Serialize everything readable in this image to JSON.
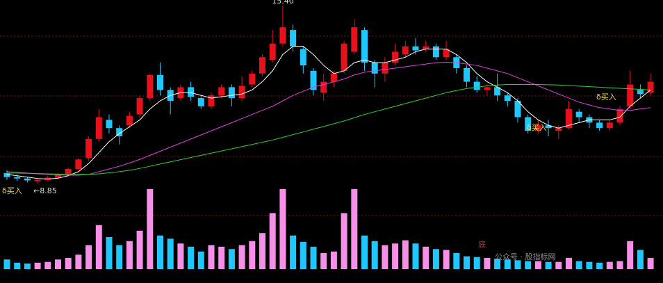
{
  "chart_data": {
    "type": "candlestick",
    "open": [
      9.25,
      9.1,
      9.05,
      8.95,
      9.0,
      9.08,
      9.2,
      9.4,
      9.8,
      10.5,
      11.2,
      10.9,
      11.0,
      11.4,
      12.0,
      12.85,
      12.3,
      12.0,
      12.4,
      12.0,
      11.7,
      12.1,
      12.4,
      12.0,
      12.5,
      12.9,
      13.4,
      14.0,
      14.5,
      13.8,
      13.0,
      12.2,
      12.6,
      13.0,
      13.7,
      14.5,
      13.3,
      12.9,
      13.3,
      13.6,
      13.9,
      13.8,
      13.9,
      13.5,
      13.5,
      13.1,
      12.6,
      12.3,
      12.4,
      12.1,
      11.9,
      11.3,
      10.8,
      11.0,
      10.8,
      10.9,
      11.5,
      11.3,
      11.1,
      10.9,
      11.1,
      11.7,
      12.3,
      12.2
    ],
    "close": [
      9.1,
      9.05,
      8.98,
      9.0,
      9.08,
      9.2,
      9.4,
      9.75,
      10.5,
      11.3,
      10.9,
      10.6,
      11.35,
      12.0,
      12.85,
      12.3,
      11.9,
      12.4,
      12.05,
      11.7,
      12.1,
      12.4,
      12.0,
      12.45,
      12.9,
      13.5,
      14.0,
      14.6,
      13.9,
      13.2,
      12.3,
      12.6,
      12.9,
      14.0,
      14.6,
      13.3,
      12.9,
      13.3,
      13.7,
      13.9,
      13.75,
      13.9,
      13.5,
      13.8,
      13.1,
      12.6,
      12.3,
      12.4,
      12.1,
      11.9,
      11.3,
      10.8,
      11.0,
      10.9,
      10.9,
      11.6,
      11.3,
      11.1,
      10.9,
      11.1,
      11.6,
      12.5,
      12.15,
      12.6
    ],
    "high": [
      9.35,
      9.2,
      9.1,
      9.05,
      9.15,
      9.25,
      9.45,
      9.8,
      10.6,
      11.6,
      11.4,
      11.0,
      11.5,
      12.1,
      12.9,
      13.3,
      12.4,
      12.5,
      12.6,
      12.1,
      12.2,
      12.5,
      12.5,
      12.8,
      13.0,
      13.6,
      14.5,
      15.4,
      14.7,
      13.9,
      13.1,
      12.9,
      13.0,
      14.1,
      14.9,
      14.6,
      13.4,
      13.5,
      14.0,
      14.1,
      14.2,
      14.1,
      14.0,
      14.1,
      13.6,
      13.2,
      12.8,
      12.5,
      12.9,
      12.2,
      12.0,
      11.4,
      11.2,
      11.2,
      11.0,
      11.9,
      11.6,
      11.4,
      11.2,
      11.2,
      11.7,
      13.0,
      12.5,
      12.9
    ],
    "low": [
      9.0,
      8.95,
      8.9,
      8.85,
      8.95,
      9.02,
      9.15,
      9.35,
      9.7,
      10.4,
      10.7,
      10.3,
      10.9,
      11.3,
      11.9,
      12.1,
      11.4,
      11.9,
      11.9,
      11.6,
      11.6,
      12.0,
      11.7,
      11.9,
      12.4,
      12.8,
      13.3,
      13.9,
      13.7,
      12.9,
      12.1,
      11.9,
      12.4,
      12.9,
      13.6,
      13.0,
      12.4,
      12.6,
      13.2,
      13.5,
      13.6,
      13.7,
      13.4,
      13.4,
      12.9,
      12.4,
      12.2,
      12.1,
      11.9,
      11.7,
      11.1,
      10.7,
      10.7,
      10.6,
      10.5,
      10.85,
      11.1,
      10.9,
      10.8,
      10.8,
      11.0,
      11.6,
      12.0,
      12.1
    ],
    "up_color": "#e8101b",
    "down_color": "#1ec8ff",
    "ylim": [
      8.2,
      15.6
    ],
    "ma": [
      {
        "color": "#ffffff",
        "values": [
          9.2,
          9.15,
          9.1,
          9.05,
          9.03,
          9.06,
          9.15,
          9.3,
          9.6,
          10.0,
          10.4,
          10.7,
          10.95,
          11.2,
          11.6,
          11.9,
          12.1,
          12.2,
          12.2,
          12.1,
          12.0,
          12.05,
          12.1,
          12.15,
          12.3,
          12.6,
          13.0,
          13.6,
          13.9,
          13.9,
          13.6,
          13.2,
          12.9,
          13.0,
          13.3,
          13.4,
          13.3,
          13.3,
          13.4,
          13.5,
          13.7,
          13.8,
          13.8,
          13.8,
          13.6,
          13.3,
          12.9,
          12.6,
          12.4,
          12.2,
          11.9,
          11.5,
          11.2,
          11.0,
          10.9,
          11.0,
          11.1,
          11.2,
          11.2,
          11.2,
          11.3,
          11.7,
          12.0,
          12.3
        ]
      },
      {
        "color": "#e040e0",
        "values": [
          9.3,
          9.28,
          9.25,
          9.22,
          9.2,
          9.18,
          9.17,
          9.17,
          9.2,
          9.3,
          9.4,
          9.5,
          9.62,
          9.75,
          9.9,
          10.05,
          10.2,
          10.35,
          10.5,
          10.65,
          10.8,
          10.95,
          11.1,
          11.25,
          11.4,
          11.55,
          11.7,
          11.9,
          12.1,
          12.25,
          12.4,
          12.5,
          12.6,
          12.7,
          12.85,
          12.95,
          13.0,
          13.05,
          13.1,
          13.15,
          13.2,
          13.25,
          13.3,
          13.32,
          13.3,
          13.25,
          13.2,
          13.1,
          13.0,
          12.9,
          12.75,
          12.6,
          12.45,
          12.3,
          12.15,
          12.0,
          11.85,
          11.75,
          11.65,
          11.6,
          11.55,
          11.55,
          11.6,
          11.65
        ]
      },
      {
        "color": "#30d030",
        "values": [
          9.25,
          9.25,
          9.24,
          9.23,
          9.22,
          9.21,
          9.2,
          9.2,
          9.2,
          9.22,
          9.26,
          9.3,
          9.35,
          9.42,
          9.5,
          9.58,
          9.66,
          9.74,
          9.82,
          9.9,
          9.98,
          10.06,
          10.14,
          10.22,
          10.3,
          10.38,
          10.46,
          10.56,
          10.66,
          10.76,
          10.86,
          10.96,
          11.06,
          11.16,
          11.28,
          11.4,
          11.5,
          11.6,
          11.7,
          11.8,
          11.9,
          12.0,
          12.1,
          12.2,
          12.28,
          12.35,
          12.4,
          12.45,
          12.48,
          12.5,
          12.5,
          12.5,
          12.5,
          12.49,
          12.48,
          12.46,
          12.44,
          12.42,
          12.4,
          12.38,
          12.36,
          12.34,
          12.32,
          12.3
        ]
      }
    ],
    "volume": {
      "values": [
        12,
        8,
        7,
        8,
        9,
        12,
        14,
        18,
        30,
        55,
        40,
        30,
        35,
        48,
        100,
        42,
        38,
        32,
        28,
        22,
        30,
        28,
        25,
        30,
        35,
        45,
        70,
        100,
        42,
        34,
        28,
        20,
        22,
        70,
        100,
        42,
        35,
        30,
        32,
        36,
        32,
        28,
        25,
        24,
        20,
        16,
        15,
        14,
        13,
        12,
        11,
        10,
        10,
        9,
        9,
        14,
        10,
        9,
        8,
        9,
        10,
        35,
        24,
        14
      ],
      "up_color": "#f58fe8",
      "down_color": "#1ec8ff",
      "vlim": [
        0,
        100
      ]
    },
    "max_label": "15.40",
    "min_label": "←8.85",
    "annotations": [
      "δ买入",
      "δ买入",
      "δ买入",
      "底"
    ],
    "watermark": "公众号 · 股指标网"
  }
}
